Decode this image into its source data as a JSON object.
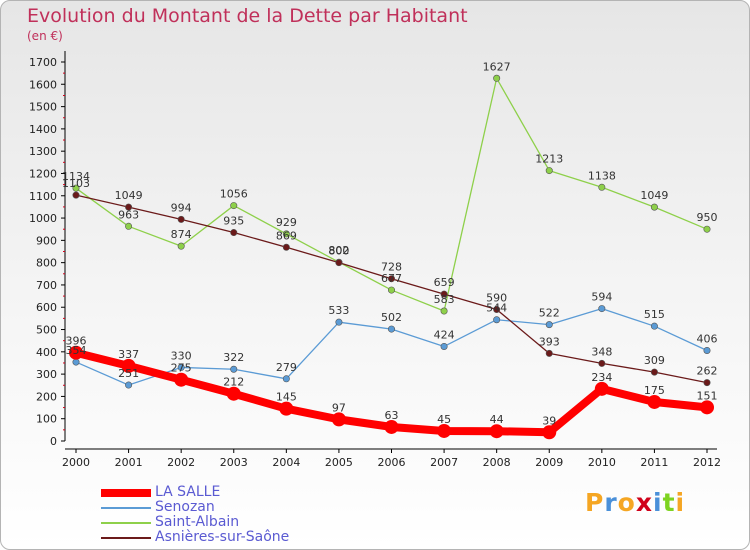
{
  "title": "Evolution du Montant de la Dette par Habitant",
  "subtitle": "(en €)",
  "logo": {
    "text": "Proxiti",
    "colors": [
      "#f5a623",
      "#4a90d9",
      "#f5a623",
      "#d0021b",
      "#4a90d9",
      "#7ed321",
      "#f5a623"
    ]
  },
  "chart_data": {
    "type": "line",
    "title": "Evolution du Montant de la Dette par Habitant",
    "ylabel": "(en €)",
    "x": [
      "2000",
      "2001",
      "2002",
      "2003",
      "2004",
      "2005",
      "2006",
      "2007",
      "2008",
      "2009",
      "2010",
      "2011",
      "2012"
    ],
    "yticks": [
      0,
      100,
      200,
      300,
      400,
      500,
      600,
      700,
      800,
      900,
      1000,
      1100,
      1200,
      1300,
      1400,
      1500,
      1600,
      1700
    ],
    "ylim": [
      0,
      1700
    ],
    "legend_position": "bottom-left",
    "series": [
      {
        "name": "LA SALLE",
        "color": "#ff0000",
        "values": [
          396,
          337,
          275,
          212,
          145,
          97,
          63,
          45,
          44,
          39,
          234,
          175,
          151
        ]
      },
      {
        "name": "Senozan",
        "color": "#5b9bd5",
        "values": [
          354,
          251,
          330,
          322,
          279,
          533,
          502,
          424,
          544,
          522,
          594,
          515,
          406
        ]
      },
      {
        "name": "Saint-Albain",
        "color": "#8ed04a",
        "values": [
          1134,
          963,
          874,
          1056,
          929,
          802,
          677,
          583,
          1627,
          1213,
          1138,
          1049,
          950
        ]
      },
      {
        "name": "Asnières-sur-Saône",
        "color": "#6b1a1a",
        "values": [
          1103,
          1049,
          994,
          935,
          869,
          800,
          728,
          659,
          590,
          393,
          348,
          309,
          262
        ]
      }
    ]
  }
}
